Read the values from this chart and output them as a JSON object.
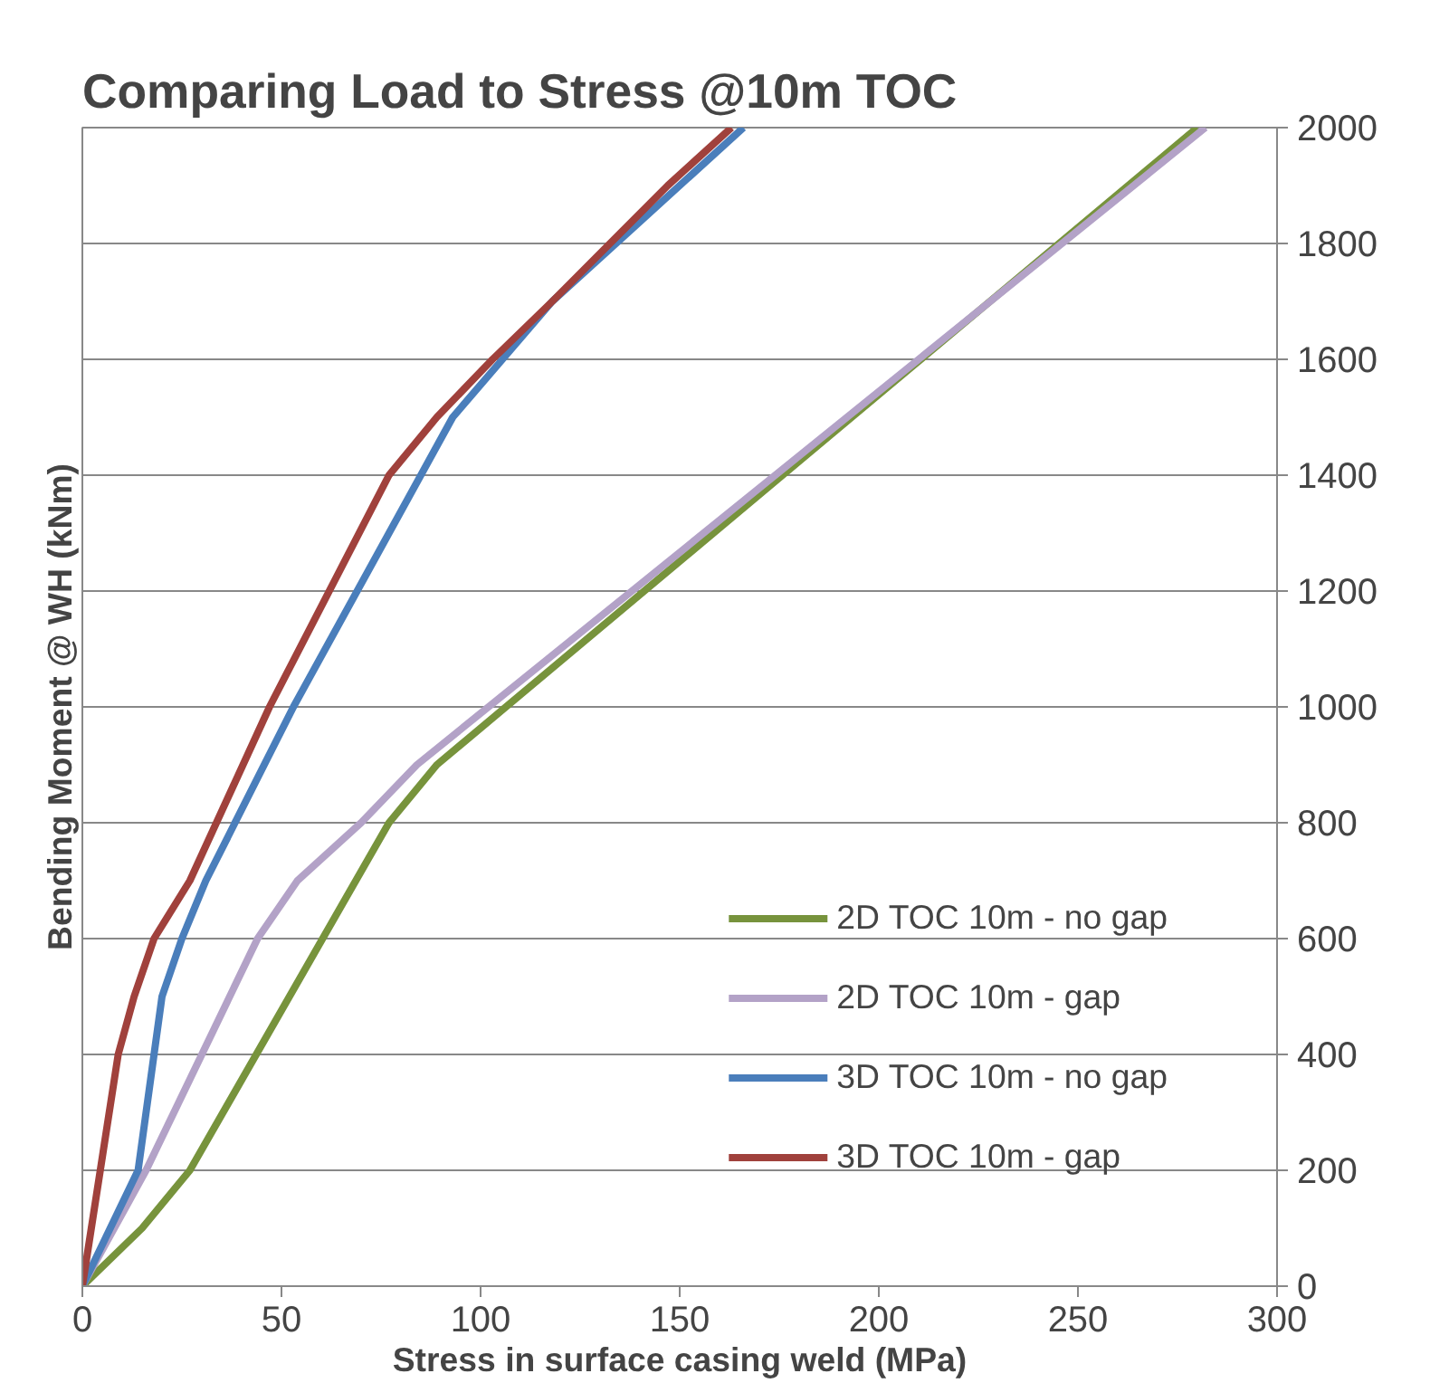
{
  "chart_data": {
    "type": "line",
    "title": "Comparing Load to Stress @10m TOC",
    "xlabel": "Stress in surface casing weld (MPa)",
    "ylabel": "Bending Moment @ WH (kNm)",
    "xlim": [
      0,
      300
    ],
    "xticks": [
      0,
      50,
      100,
      150,
      200,
      250,
      300
    ],
    "ylim": [
      0,
      2000
    ],
    "yticks": [
      0,
      200,
      400,
      600,
      800,
      1000,
      1200,
      1400,
      1600,
      1800,
      2000
    ],
    "grid": "y",
    "legend": "bottom right",
    "marker": "none",
    "line_style": "solid",
    "series": [
      {
        "name": "2D TOC 10m - no gap",
        "color": "#77933c",
        "x": [
          0,
          15,
          27,
          77,
          89,
          280
        ],
        "values": [
          0,
          100,
          200,
          800,
          900,
          2000
        ]
      },
      {
        "name": "2D TOC 10m - gap",
        "color": "#b3a2c7",
        "x": [
          0,
          16,
          44,
          54,
          70,
          84,
          282
        ],
        "values": [
          0,
          200,
          600,
          700,
          800,
          900,
          2000
        ]
      },
      {
        "name": "3D TOC 10m - no gap",
        "color": "#4a7ebb",
        "x": [
          0,
          14,
          20,
          25,
          31,
          53,
          93,
          118,
          166
        ],
        "values": [
          0,
          200,
          500,
          600,
          700,
          1000,
          1500,
          1700,
          2000
        ]
      },
      {
        "name": "3D TOC 10m - gap",
        "color": "#a0413c",
        "x": [
          0,
          9,
          13,
          18,
          27,
          47,
          77,
          89,
          103,
          118,
          147,
          163
        ],
        "values": [
          0,
          400,
          500,
          600,
          700,
          1000,
          1400,
          1500,
          1600,
          1700,
          1900,
          2000
        ]
      }
    ]
  }
}
